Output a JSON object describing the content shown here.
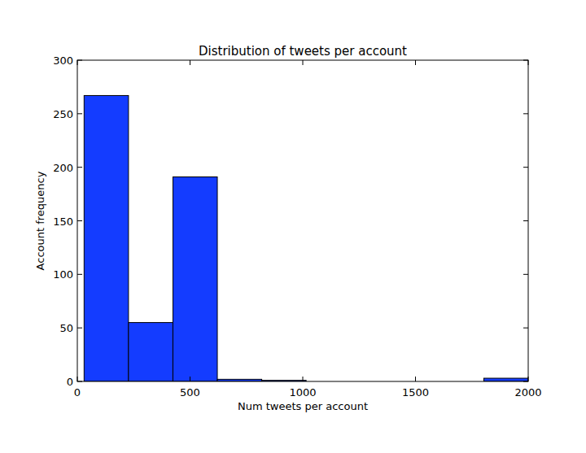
{
  "chart_data": {
    "type": "histogram",
    "title": "Distribution of tweets per account",
    "x_label": "Num tweets per account",
    "y_label": "Account frequency",
    "bins": [
      30,
      227,
      424,
      621,
      818,
      1015,
      1212,
      1409,
      1606,
      1803,
      2000
    ],
    "values": [
      267,
      55,
      191,
      2,
      1,
      0,
      0,
      0,
      0,
      3
    ],
    "color": "#143cff",
    "xlim": [
      0,
      2000
    ],
    "ylim": [
      0,
      300
    ],
    "xticks": [
      0,
      500,
      1000,
      1500,
      2000
    ],
    "yticks": [
      0,
      50,
      100,
      150,
      200,
      250,
      300
    ],
    "grid": false
  }
}
